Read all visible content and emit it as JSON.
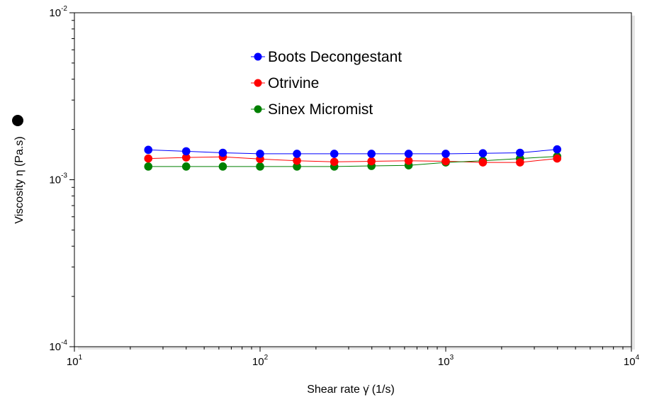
{
  "chart_data": {
    "type": "scatter",
    "x_scale": "log",
    "y_scale": "log",
    "xlim": [
      10,
      10000
    ],
    "ylim": [
      0.0001,
      0.01
    ],
    "xlabel": "Shear rate  γ̇  (1/s)",
    "ylabel": "Viscosity  η  (Pa.s)",
    "x_ticks": [
      {
        "base": "10",
        "exp": "1"
      },
      {
        "base": "10",
        "exp": "2"
      },
      {
        "base": "10",
        "exp": "3"
      },
      {
        "base": "10",
        "exp": "4"
      }
    ],
    "y_ticks": [
      {
        "base": "10",
        "exp": "-2"
      },
      {
        "base": "10",
        "exp": "-3"
      },
      {
        "base": "10",
        "exp": "-4"
      }
    ],
    "grid": false,
    "legend_position": "top-center",
    "x": [
      25,
      40,
      63,
      100,
      158,
      251,
      398,
      631,
      1000,
      1585,
      2512,
      3981
    ],
    "series": [
      {
        "name": "Boots Decongestant",
        "color": "#0000ff",
        "values": [
          0.00151,
          0.00148,
          0.00145,
          0.00143,
          0.00143,
          0.00143,
          0.00143,
          0.00143,
          0.00143,
          0.00144,
          0.00145,
          0.00152
        ]
      },
      {
        "name": "Otrivine",
        "color": "#ff0000",
        "values": [
          0.00134,
          0.00136,
          0.00137,
          0.00133,
          0.0013,
          0.00128,
          0.00129,
          0.0013,
          0.00129,
          0.00127,
          0.00127,
          0.00134
        ]
      },
      {
        "name": "Sinex Micromist",
        "color": "#008000",
        "values": [
          0.0012,
          0.0012,
          0.0012,
          0.0012,
          0.0012,
          0.0012,
          0.00121,
          0.00122,
          0.00127,
          0.0013,
          0.00134,
          0.00138
        ]
      }
    ],
    "legend_marker_icon": "filled-circle-icon"
  }
}
